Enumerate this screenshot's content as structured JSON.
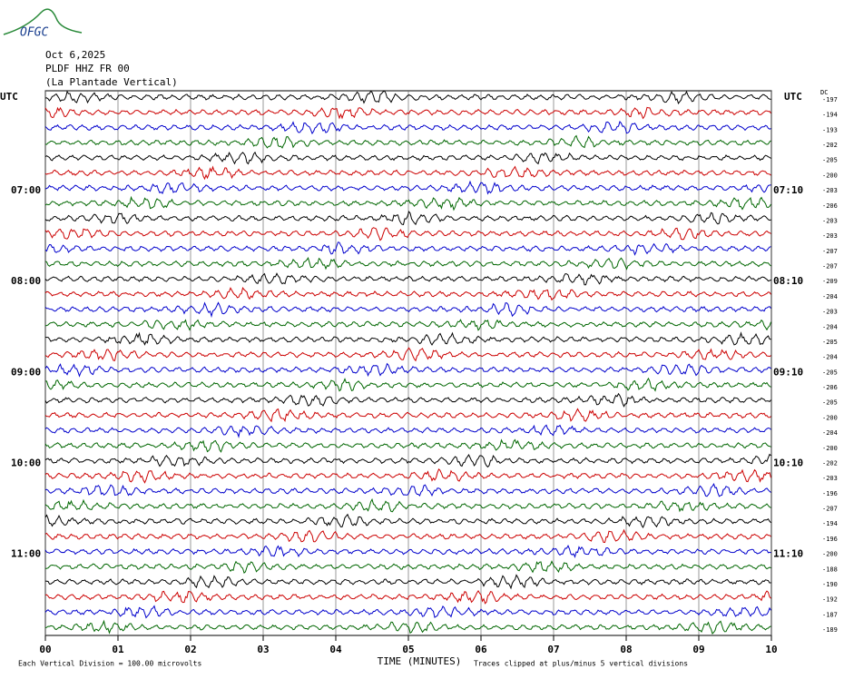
{
  "logo": "OFGC",
  "header": {
    "date": "Oct 6,2025",
    "station": "PLDF HHZ FR 00",
    "site": "(La Plantade Vertical)"
  },
  "dc_label": "DC",
  "trace_colors": [
    "#000000",
    "#cc0000",
    "#0000cc",
    "#006600"
  ],
  "rows": [
    {
      "dc": -197,
      "left": "UTC",
      "right": "UTC"
    },
    {
      "dc": -194
    },
    {
      "dc": -193
    },
    {
      "dc": -202
    },
    {
      "dc": -205
    },
    {
      "dc": -200
    },
    {
      "dc": -203,
      "left": "07:00",
      "right": "07:10"
    },
    {
      "dc": -206
    },
    {
      "dc": -203
    },
    {
      "dc": -203
    },
    {
      "dc": -207
    },
    {
      "dc": -207
    },
    {
      "dc": -209,
      "left": "08:00",
      "right": "08:10"
    },
    {
      "dc": -204
    },
    {
      "dc": -203
    },
    {
      "dc": -204
    },
    {
      "dc": -205
    },
    {
      "dc": -204
    },
    {
      "dc": -205,
      "left": "09:00",
      "right": "09:10"
    },
    {
      "dc": -206
    },
    {
      "dc": -205
    },
    {
      "dc": -200
    },
    {
      "dc": -204
    },
    {
      "dc": -200
    },
    {
      "dc": -202,
      "left": "10:00",
      "right": "10:10"
    },
    {
      "dc": -203
    },
    {
      "dc": -196
    },
    {
      "dc": -207
    },
    {
      "dc": -194
    },
    {
      "dc": -196
    },
    {
      "dc": -200,
      "left": "11:00",
      "right": "11:10"
    },
    {
      "dc": -188
    },
    {
      "dc": -190
    },
    {
      "dc": -192
    },
    {
      "dc": -187
    },
    {
      "dc": -189
    }
  ],
  "x_ticks": [
    "00",
    "01",
    "02",
    "03",
    "04",
    "05",
    "06",
    "07",
    "08",
    "09",
    "10"
  ],
  "footer": {
    "scale": "Each Vertical Division =  100.00 microvolts",
    "axis_title": "TIME (MINUTES)",
    "note": "Traces clipped at plus/minus 5 vertical divisions"
  }
}
